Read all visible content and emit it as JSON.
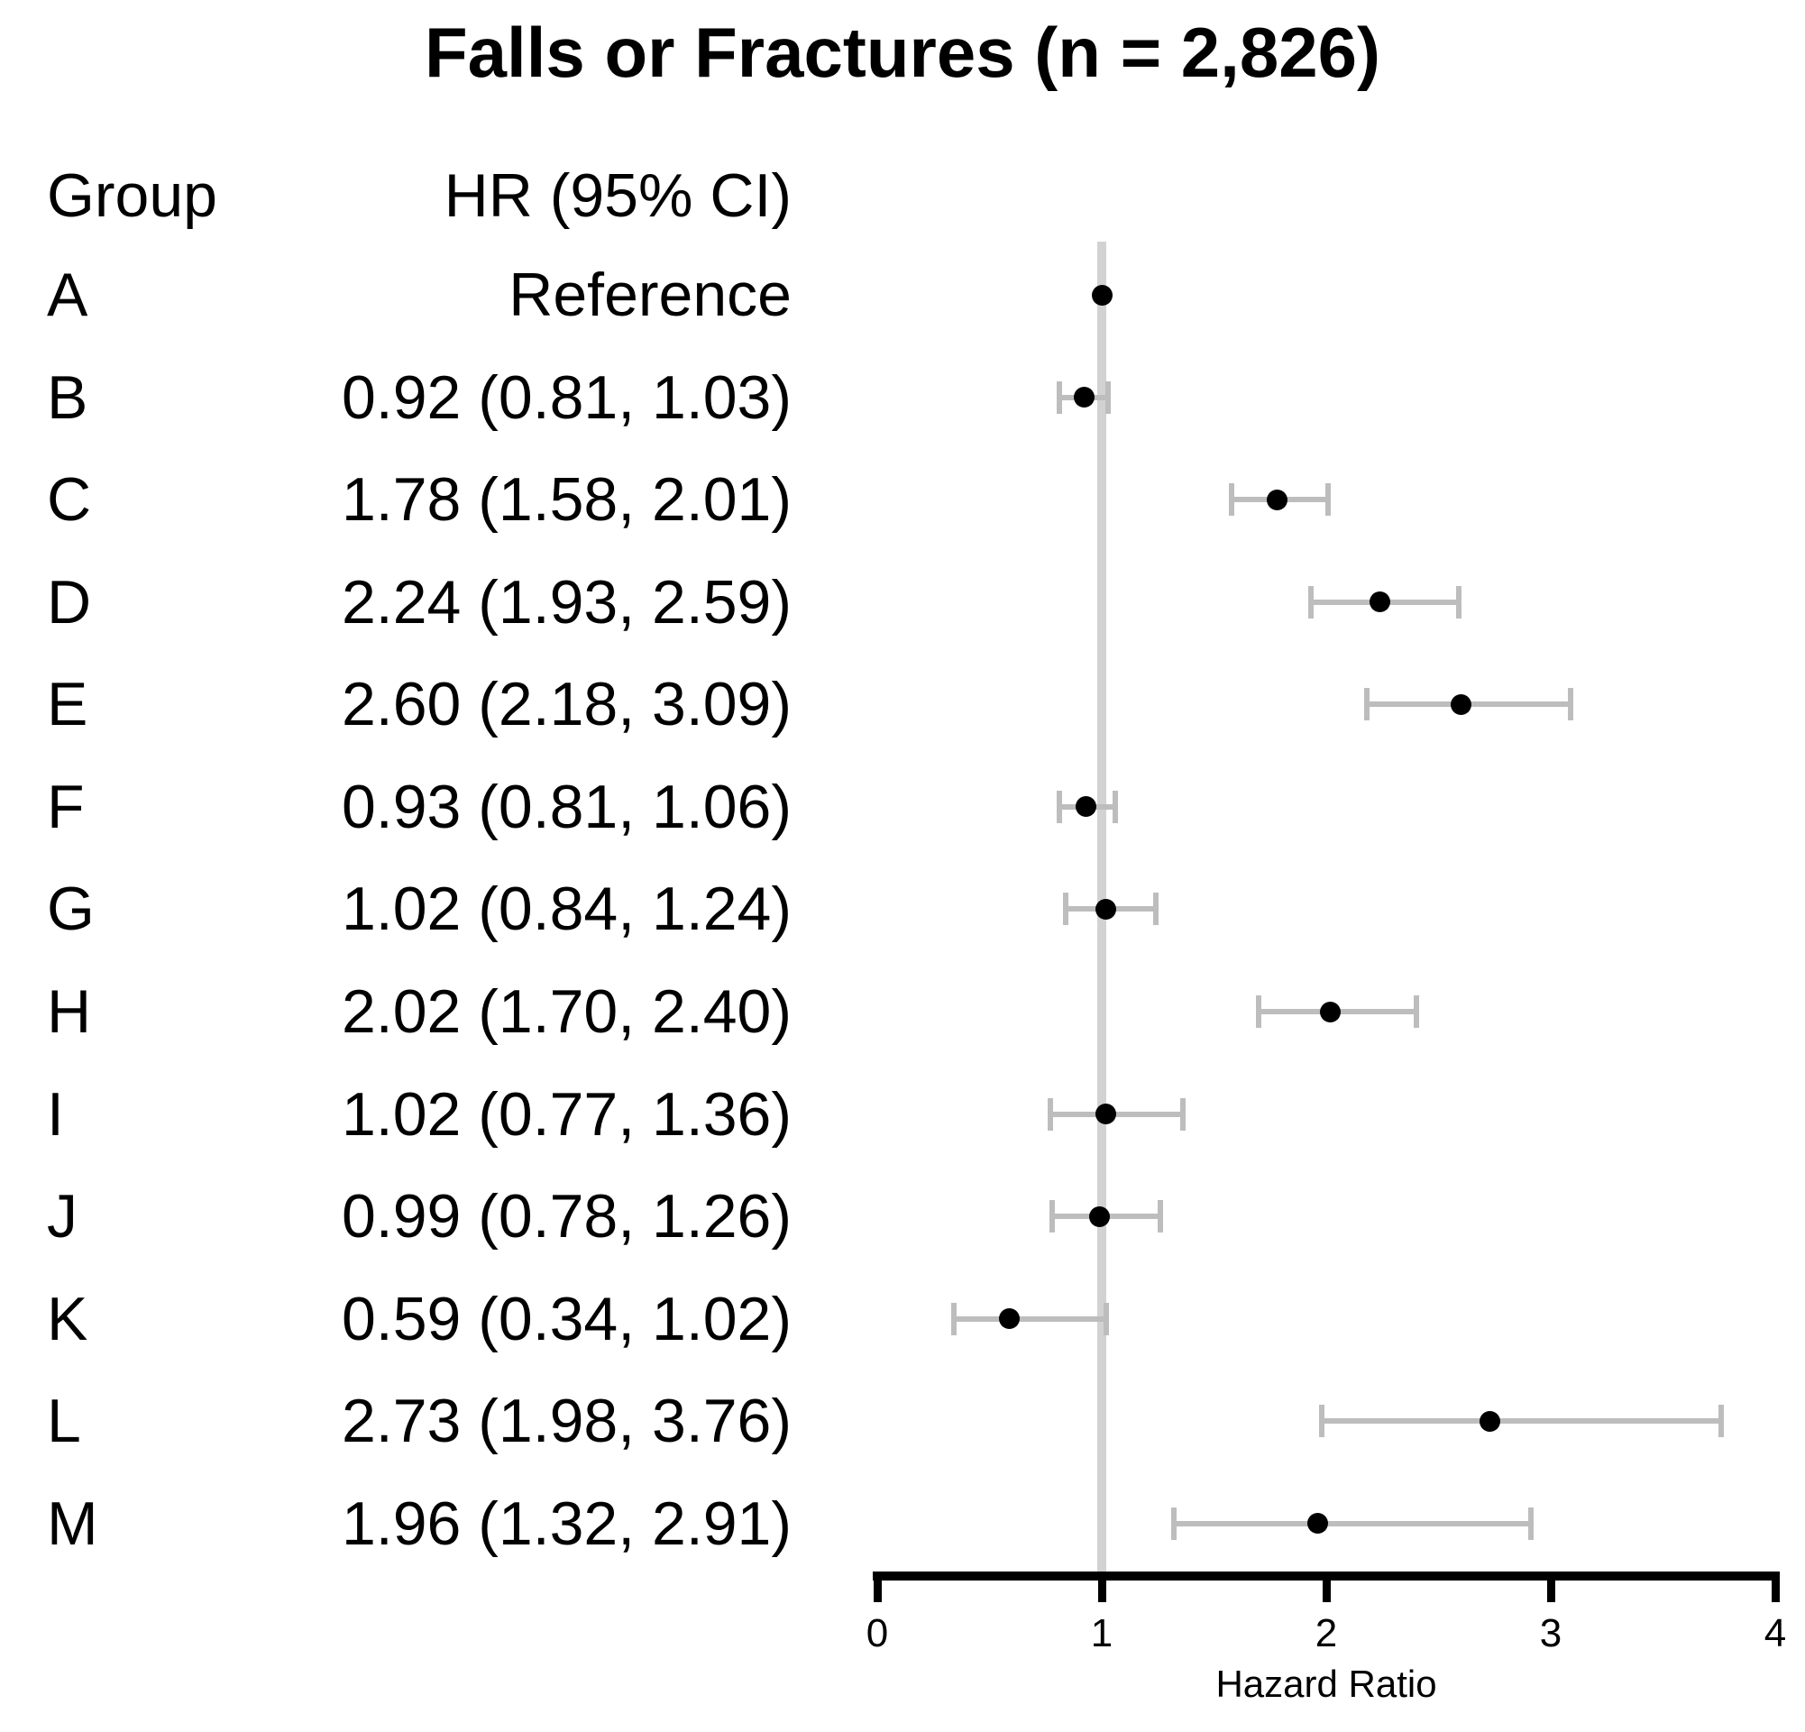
{
  "colors": {
    "background": "#ffffff",
    "text": "#000000",
    "marker": "#000000",
    "ci_bar": "#bdbdbd",
    "ref_line": "#d2d2d2",
    "axis": "#000000"
  },
  "chart_data": {
    "type": "forest",
    "title": "Falls or Fractures (n = 2,826)",
    "columns": {
      "group": "Group",
      "hr": "HR (95% CI)"
    },
    "xlabel": "Hazard Ratio",
    "xlim": [
      0,
      4
    ],
    "x_tick_values": [
      0,
      1,
      2,
      3,
      4
    ],
    "x_tick_labels": [
      "0",
      "1",
      "2",
      "3",
      "4"
    ],
    "reference_line": 1,
    "grid": false,
    "legend": false,
    "rows": [
      {
        "group": "A",
        "hr_text": "Reference",
        "hr": 1.0,
        "ci_low": null,
        "ci_high": null
      },
      {
        "group": "B",
        "hr_text": "0.92 (0.81, 1.03)",
        "hr": 0.92,
        "ci_low": 0.81,
        "ci_high": 1.03
      },
      {
        "group": "C",
        "hr_text": "1.78 (1.58, 2.01)",
        "hr": 1.78,
        "ci_low": 1.58,
        "ci_high": 2.01
      },
      {
        "group": "D",
        "hr_text": "2.24 (1.93, 2.59)",
        "hr": 2.24,
        "ci_low": 1.93,
        "ci_high": 2.59
      },
      {
        "group": "E",
        "hr_text": "2.60 (2.18, 3.09)",
        "hr": 2.6,
        "ci_low": 2.18,
        "ci_high": 3.09
      },
      {
        "group": "F",
        "hr_text": "0.93 (0.81, 1.06)",
        "hr": 0.93,
        "ci_low": 0.81,
        "ci_high": 1.06
      },
      {
        "group": "G",
        "hr_text": "1.02 (0.84, 1.24)",
        "hr": 1.02,
        "ci_low": 0.84,
        "ci_high": 1.24
      },
      {
        "group": "H",
        "hr_text": "2.02 (1.70, 2.40)",
        "hr": 2.02,
        "ci_low": 1.7,
        "ci_high": 2.4
      },
      {
        "group": "I",
        "hr_text": "1.02 (0.77, 1.36)",
        "hr": 1.02,
        "ci_low": 0.77,
        "ci_high": 1.36
      },
      {
        "group": "J",
        "hr_text": "0.99 (0.78, 1.26)",
        "hr": 0.99,
        "ci_low": 0.78,
        "ci_high": 1.26
      },
      {
        "group": "K",
        "hr_text": "0.59 (0.34, 1.02)",
        "hr": 0.59,
        "ci_low": 0.34,
        "ci_high": 1.02
      },
      {
        "group": "L",
        "hr_text": "2.73 (1.98, 3.76)",
        "hr": 2.73,
        "ci_low": 1.98,
        "ci_high": 3.76
      },
      {
        "group": "M",
        "hr_text": "1.96 (1.32, 2.91)",
        "hr": 1.96,
        "ci_low": 1.32,
        "ci_high": 2.91
      }
    ]
  }
}
